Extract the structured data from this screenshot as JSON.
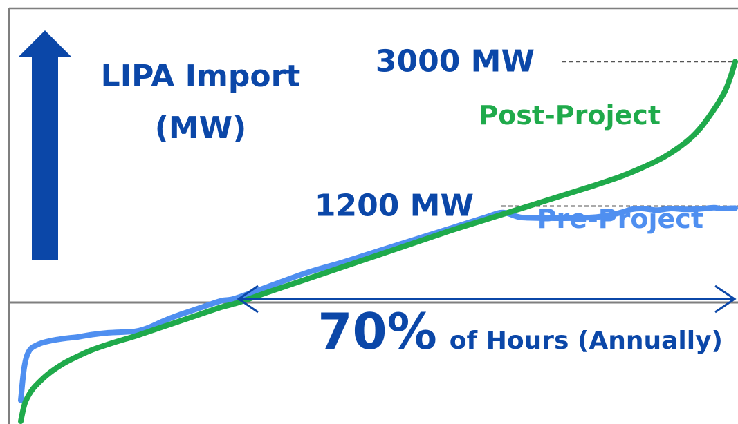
{
  "chart_data": {
    "type": "line",
    "title": "",
    "y_axis_label_line1": "LIPA Import",
    "y_axis_label_line2": "(MW)",
    "xlabel": "",
    "ylabel": "LIPA Import (MW)",
    "x_unit": "percent of hours",
    "y_unit": "MW",
    "xlim": [
      0,
      100
    ],
    "ylim": [
      -1480,
      3080
    ],
    "reference_lines": [
      {
        "value": 3000,
        "label": "3000 MW"
      },
      {
        "value": 1200,
        "label": "1200 MW"
      }
    ],
    "zero_line": 0,
    "annotation": {
      "big": "70%",
      "small": "of Hours (Annually)",
      "from_x": 30.5,
      "to_x": 100
    },
    "series": [
      {
        "name": "Post-Project",
        "color": "#1FAA4B",
        "x": [
          0,
          0.6,
          1.5,
          2.5,
          4,
          6,
          8,
          10,
          13,
          16,
          19,
          22,
          25,
          28,
          30.5,
          35,
          40,
          45,
          50,
          55,
          60,
          65,
          70,
          75,
          80,
          84,
          87,
          90,
          93,
          95,
          97,
          98.5,
          99.3,
          100
        ],
        "values": [
          -1480,
          -1250,
          -1100,
          -1000,
          -880,
          -760,
          -670,
          -590,
          -500,
          -420,
          -330,
          -240,
          -150,
          -60,
          0,
          140,
          290,
          440,
          590,
          740,
          890,
          1030,
          1170,
          1310,
          1450,
          1570,
          1680,
          1810,
          1990,
          2160,
          2400,
          2620,
          2800,
          3000
        ]
      },
      {
        "name": "Pre-Project",
        "color": "#4F8FF0",
        "x": [
          0,
          0.5,
          1.2,
          2.5,
          4,
          6,
          8,
          10,
          12,
          14,
          16,
          17,
          18,
          20,
          22,
          25,
          28,
          30,
          35,
          40,
          45,
          50,
          55,
          60,
          65,
          67.5,
          70,
          74,
          77,
          80,
          82,
          84,
          85.5,
          87,
          89,
          91,
          93,
          95,
          97,
          98,
          100
        ],
        "values": [
          -1220,
          -800,
          -600,
          -520,
          -480,
          -450,
          -430,
          -400,
          -380,
          -370,
          -360,
          -340,
          -310,
          -230,
          -160,
          -70,
          20,
          50,
          210,
          370,
          500,
          640,
          780,
          920,
          1060,
          1120,
          1060,
          1050,
          1050,
          1060,
          1080,
          1120,
          1160,
          1170,
          1150,
          1170,
          1160,
          1165,
          1180,
          1170,
          1175
        ]
      }
    ],
    "series_labels": [
      {
        "name": "Post-Project",
        "text": "Post-Project",
        "color": "#1FAA4B"
      },
      {
        "name": "Pre-Project",
        "text": "Pre-Project",
        "color": "#4F8FF0"
      }
    ],
    "text_color": "#0B47A8",
    "axis_color": "#7F7F7F"
  }
}
